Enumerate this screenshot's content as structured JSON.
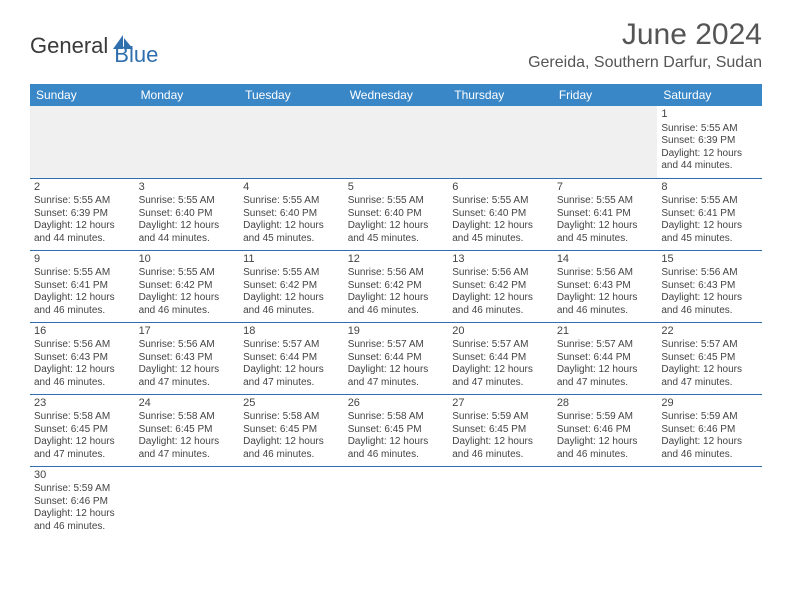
{
  "logo": {
    "text1": "General",
    "text2": "Blue",
    "text1_color": "#3a3a3a",
    "text2_color": "#2f6fae",
    "icon_color": "#2f6fae"
  },
  "header": {
    "title": "June 2024",
    "location": "Gereida, Southern Darfur, Sudan"
  },
  "calendar": {
    "type": "table",
    "header_bg": "#3a87c8",
    "header_fg": "#ffffff",
    "border_color": "#2f6fae",
    "empty_bg": "#f0f0f0",
    "columns": [
      "Sunday",
      "Monday",
      "Tuesday",
      "Wednesday",
      "Thursday",
      "Friday",
      "Saturday"
    ],
    "weeks": [
      [
        null,
        null,
        null,
        null,
        null,
        null,
        {
          "n": "1",
          "sr": "Sunrise: 5:55 AM",
          "ss": "Sunset: 6:39 PM",
          "dl": "Daylight: 12 hours and 44 minutes."
        }
      ],
      [
        {
          "n": "2",
          "sr": "Sunrise: 5:55 AM",
          "ss": "Sunset: 6:39 PM",
          "dl": "Daylight: 12 hours and 44 minutes."
        },
        {
          "n": "3",
          "sr": "Sunrise: 5:55 AM",
          "ss": "Sunset: 6:40 PM",
          "dl": "Daylight: 12 hours and 44 minutes."
        },
        {
          "n": "4",
          "sr": "Sunrise: 5:55 AM",
          "ss": "Sunset: 6:40 PM",
          "dl": "Daylight: 12 hours and 45 minutes."
        },
        {
          "n": "5",
          "sr": "Sunrise: 5:55 AM",
          "ss": "Sunset: 6:40 PM",
          "dl": "Daylight: 12 hours and 45 minutes."
        },
        {
          "n": "6",
          "sr": "Sunrise: 5:55 AM",
          "ss": "Sunset: 6:40 PM",
          "dl": "Daylight: 12 hours and 45 minutes."
        },
        {
          "n": "7",
          "sr": "Sunrise: 5:55 AM",
          "ss": "Sunset: 6:41 PM",
          "dl": "Daylight: 12 hours and 45 minutes."
        },
        {
          "n": "8",
          "sr": "Sunrise: 5:55 AM",
          "ss": "Sunset: 6:41 PM",
          "dl": "Daylight: 12 hours and 45 minutes."
        }
      ],
      [
        {
          "n": "9",
          "sr": "Sunrise: 5:55 AM",
          "ss": "Sunset: 6:41 PM",
          "dl": "Daylight: 12 hours and 46 minutes."
        },
        {
          "n": "10",
          "sr": "Sunrise: 5:55 AM",
          "ss": "Sunset: 6:42 PM",
          "dl": "Daylight: 12 hours and 46 minutes."
        },
        {
          "n": "11",
          "sr": "Sunrise: 5:55 AM",
          "ss": "Sunset: 6:42 PM",
          "dl": "Daylight: 12 hours and 46 minutes."
        },
        {
          "n": "12",
          "sr": "Sunrise: 5:56 AM",
          "ss": "Sunset: 6:42 PM",
          "dl": "Daylight: 12 hours and 46 minutes."
        },
        {
          "n": "13",
          "sr": "Sunrise: 5:56 AM",
          "ss": "Sunset: 6:42 PM",
          "dl": "Daylight: 12 hours and 46 minutes."
        },
        {
          "n": "14",
          "sr": "Sunrise: 5:56 AM",
          "ss": "Sunset: 6:43 PM",
          "dl": "Daylight: 12 hours and 46 minutes."
        },
        {
          "n": "15",
          "sr": "Sunrise: 5:56 AM",
          "ss": "Sunset: 6:43 PM",
          "dl": "Daylight: 12 hours and 46 minutes."
        }
      ],
      [
        {
          "n": "16",
          "sr": "Sunrise: 5:56 AM",
          "ss": "Sunset: 6:43 PM",
          "dl": "Daylight: 12 hours and 46 minutes."
        },
        {
          "n": "17",
          "sr": "Sunrise: 5:56 AM",
          "ss": "Sunset: 6:43 PM",
          "dl": "Daylight: 12 hours and 47 minutes."
        },
        {
          "n": "18",
          "sr": "Sunrise: 5:57 AM",
          "ss": "Sunset: 6:44 PM",
          "dl": "Daylight: 12 hours and 47 minutes."
        },
        {
          "n": "19",
          "sr": "Sunrise: 5:57 AM",
          "ss": "Sunset: 6:44 PM",
          "dl": "Daylight: 12 hours and 47 minutes."
        },
        {
          "n": "20",
          "sr": "Sunrise: 5:57 AM",
          "ss": "Sunset: 6:44 PM",
          "dl": "Daylight: 12 hours and 47 minutes."
        },
        {
          "n": "21",
          "sr": "Sunrise: 5:57 AM",
          "ss": "Sunset: 6:44 PM",
          "dl": "Daylight: 12 hours and 47 minutes."
        },
        {
          "n": "22",
          "sr": "Sunrise: 5:57 AM",
          "ss": "Sunset: 6:45 PM",
          "dl": "Daylight: 12 hours and 47 minutes."
        }
      ],
      [
        {
          "n": "23",
          "sr": "Sunrise: 5:58 AM",
          "ss": "Sunset: 6:45 PM",
          "dl": "Daylight: 12 hours and 47 minutes."
        },
        {
          "n": "24",
          "sr": "Sunrise: 5:58 AM",
          "ss": "Sunset: 6:45 PM",
          "dl": "Daylight: 12 hours and 47 minutes."
        },
        {
          "n": "25",
          "sr": "Sunrise: 5:58 AM",
          "ss": "Sunset: 6:45 PM",
          "dl": "Daylight: 12 hours and 46 minutes."
        },
        {
          "n": "26",
          "sr": "Sunrise: 5:58 AM",
          "ss": "Sunset: 6:45 PM",
          "dl": "Daylight: 12 hours and 46 minutes."
        },
        {
          "n": "27",
          "sr": "Sunrise: 5:59 AM",
          "ss": "Sunset: 6:45 PM",
          "dl": "Daylight: 12 hours and 46 minutes."
        },
        {
          "n": "28",
          "sr": "Sunrise: 5:59 AM",
          "ss": "Sunset: 6:46 PM",
          "dl": "Daylight: 12 hours and 46 minutes."
        },
        {
          "n": "29",
          "sr": "Sunrise: 5:59 AM",
          "ss": "Sunset: 6:46 PM",
          "dl": "Daylight: 12 hours and 46 minutes."
        }
      ],
      [
        {
          "n": "30",
          "sr": "Sunrise: 5:59 AM",
          "ss": "Sunset: 6:46 PM",
          "dl": "Daylight: 12 hours and 46 minutes."
        },
        null,
        null,
        null,
        null,
        null,
        null
      ]
    ]
  }
}
